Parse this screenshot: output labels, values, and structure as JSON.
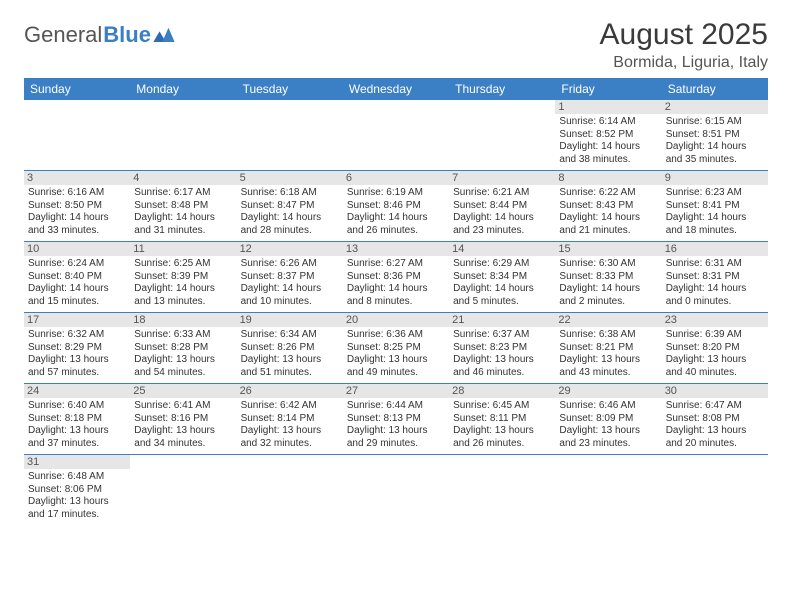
{
  "logo": {
    "part1": "General",
    "part2": "Blue"
  },
  "title": "August 2025",
  "location": "Bormida, Liguria, Italy",
  "colors": {
    "header_bg": "#3b7fc4",
    "header_text": "#ffffff",
    "daynum_bg": "#e6e6e6",
    "border": "#3b7fc4",
    "text": "#333333",
    "title_text": "#3a3a3a"
  },
  "weekdays": [
    "Sunday",
    "Monday",
    "Tuesday",
    "Wednesday",
    "Thursday",
    "Friday",
    "Saturday"
  ],
  "weeks": [
    [
      null,
      null,
      null,
      null,
      null,
      {
        "n": "1",
        "sr": "6:14 AM",
        "ss": "8:52 PM",
        "dl": "14 hours and 38 minutes."
      },
      {
        "n": "2",
        "sr": "6:15 AM",
        "ss": "8:51 PM",
        "dl": "14 hours and 35 minutes."
      }
    ],
    [
      {
        "n": "3",
        "sr": "6:16 AM",
        "ss": "8:50 PM",
        "dl": "14 hours and 33 minutes."
      },
      {
        "n": "4",
        "sr": "6:17 AM",
        "ss": "8:48 PM",
        "dl": "14 hours and 31 minutes."
      },
      {
        "n": "5",
        "sr": "6:18 AM",
        "ss": "8:47 PM",
        "dl": "14 hours and 28 minutes."
      },
      {
        "n": "6",
        "sr": "6:19 AM",
        "ss": "8:46 PM",
        "dl": "14 hours and 26 minutes."
      },
      {
        "n": "7",
        "sr": "6:21 AM",
        "ss": "8:44 PM",
        "dl": "14 hours and 23 minutes."
      },
      {
        "n": "8",
        "sr": "6:22 AM",
        "ss": "8:43 PM",
        "dl": "14 hours and 21 minutes."
      },
      {
        "n": "9",
        "sr": "6:23 AM",
        "ss": "8:41 PM",
        "dl": "14 hours and 18 minutes."
      }
    ],
    [
      {
        "n": "10",
        "sr": "6:24 AM",
        "ss": "8:40 PM",
        "dl": "14 hours and 15 minutes."
      },
      {
        "n": "11",
        "sr": "6:25 AM",
        "ss": "8:39 PM",
        "dl": "14 hours and 13 minutes."
      },
      {
        "n": "12",
        "sr": "6:26 AM",
        "ss": "8:37 PM",
        "dl": "14 hours and 10 minutes."
      },
      {
        "n": "13",
        "sr": "6:27 AM",
        "ss": "8:36 PM",
        "dl": "14 hours and 8 minutes."
      },
      {
        "n": "14",
        "sr": "6:29 AM",
        "ss": "8:34 PM",
        "dl": "14 hours and 5 minutes."
      },
      {
        "n": "15",
        "sr": "6:30 AM",
        "ss": "8:33 PM",
        "dl": "14 hours and 2 minutes."
      },
      {
        "n": "16",
        "sr": "6:31 AM",
        "ss": "8:31 PM",
        "dl": "14 hours and 0 minutes."
      }
    ],
    [
      {
        "n": "17",
        "sr": "6:32 AM",
        "ss": "8:29 PM",
        "dl": "13 hours and 57 minutes."
      },
      {
        "n": "18",
        "sr": "6:33 AM",
        "ss": "8:28 PM",
        "dl": "13 hours and 54 minutes."
      },
      {
        "n": "19",
        "sr": "6:34 AM",
        "ss": "8:26 PM",
        "dl": "13 hours and 51 minutes."
      },
      {
        "n": "20",
        "sr": "6:36 AM",
        "ss": "8:25 PM",
        "dl": "13 hours and 49 minutes."
      },
      {
        "n": "21",
        "sr": "6:37 AM",
        "ss": "8:23 PM",
        "dl": "13 hours and 46 minutes."
      },
      {
        "n": "22",
        "sr": "6:38 AM",
        "ss": "8:21 PM",
        "dl": "13 hours and 43 minutes."
      },
      {
        "n": "23",
        "sr": "6:39 AM",
        "ss": "8:20 PM",
        "dl": "13 hours and 40 minutes."
      }
    ],
    [
      {
        "n": "24",
        "sr": "6:40 AM",
        "ss": "8:18 PM",
        "dl": "13 hours and 37 minutes."
      },
      {
        "n": "25",
        "sr": "6:41 AM",
        "ss": "8:16 PM",
        "dl": "13 hours and 34 minutes."
      },
      {
        "n": "26",
        "sr": "6:42 AM",
        "ss": "8:14 PM",
        "dl": "13 hours and 32 minutes."
      },
      {
        "n": "27",
        "sr": "6:44 AM",
        "ss": "8:13 PM",
        "dl": "13 hours and 29 minutes."
      },
      {
        "n": "28",
        "sr": "6:45 AM",
        "ss": "8:11 PM",
        "dl": "13 hours and 26 minutes."
      },
      {
        "n": "29",
        "sr": "6:46 AM",
        "ss": "8:09 PM",
        "dl": "13 hours and 23 minutes."
      },
      {
        "n": "30",
        "sr": "6:47 AM",
        "ss": "8:08 PM",
        "dl": "13 hours and 20 minutes."
      }
    ],
    [
      {
        "n": "31",
        "sr": "6:48 AM",
        "ss": "8:06 PM",
        "dl": "13 hours and 17 minutes."
      },
      null,
      null,
      null,
      null,
      null,
      null
    ]
  ],
  "labels": {
    "sunrise": "Sunrise: ",
    "sunset": "Sunset: ",
    "daylight": "Daylight: "
  }
}
